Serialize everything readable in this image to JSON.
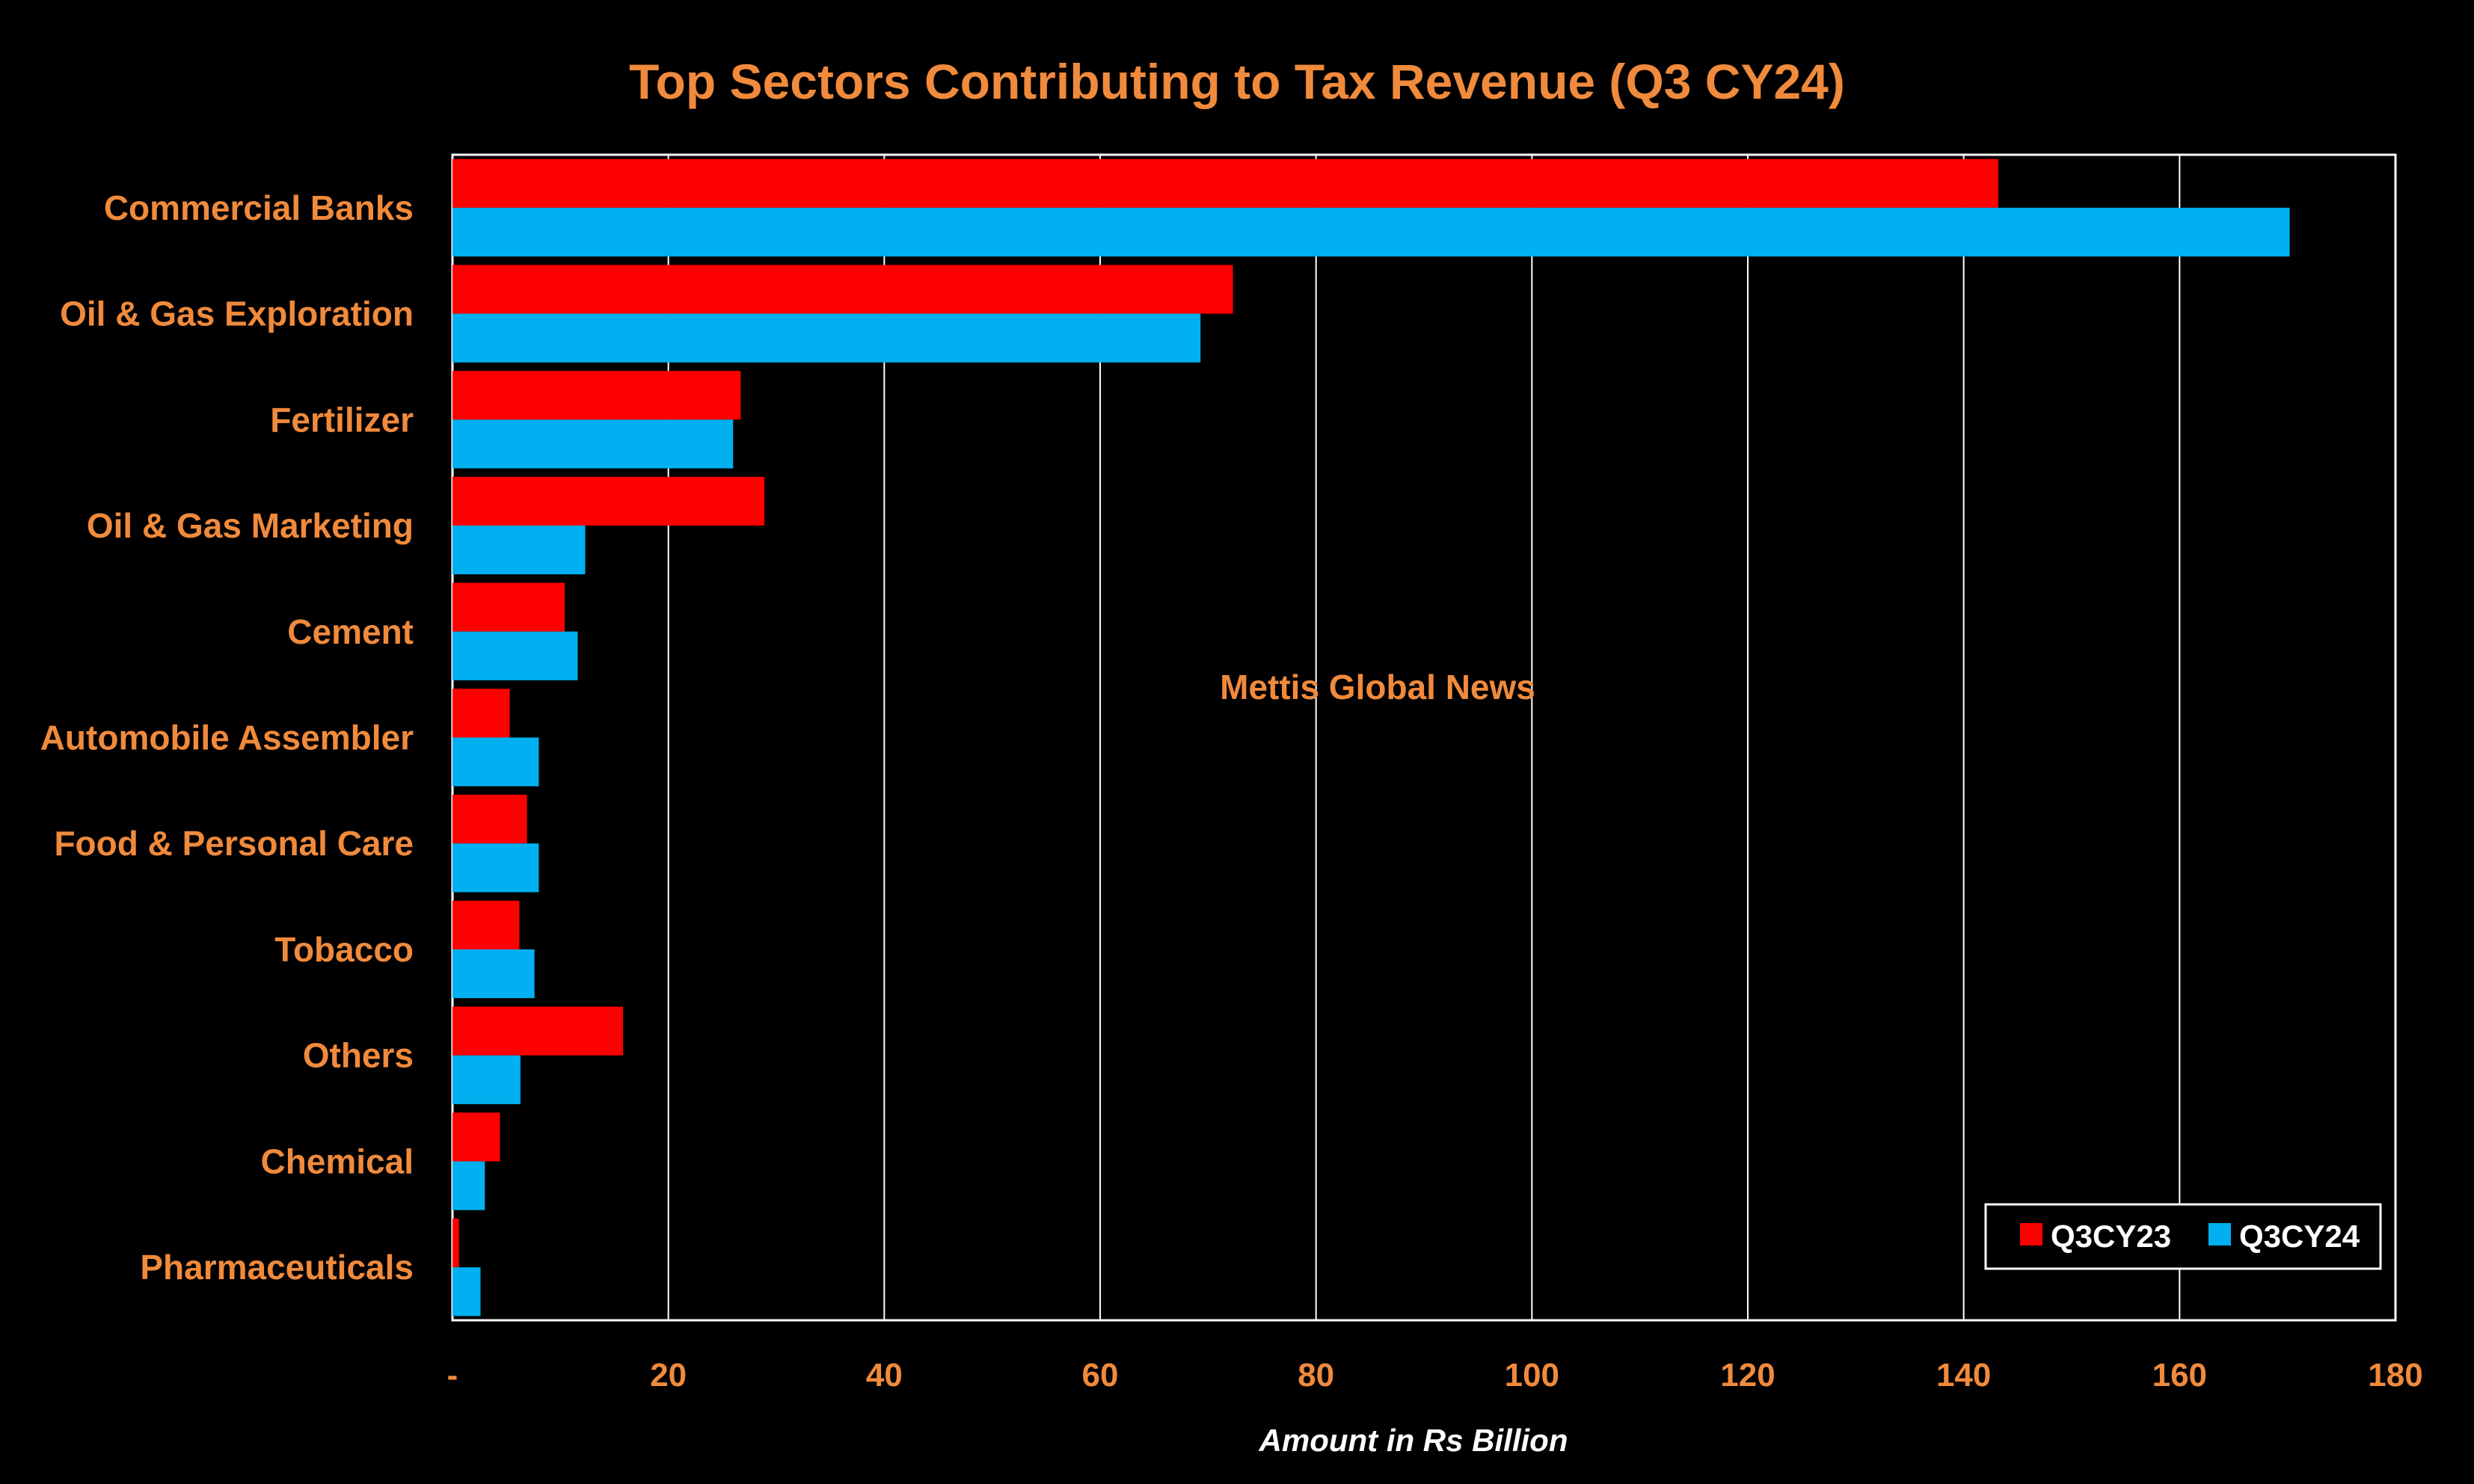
{
  "colors": {
    "background": "#000000",
    "text_orange": "#F08A3C",
    "axis_title": "#FFFFFF",
    "gridline": "#FFFFFF",
    "series_q3cy23": "#FF0000",
    "series_q3cy24": "#00B0F0"
  },
  "watermark": "Mettis Global News",
  "chart_data": {
    "type": "bar",
    "orientation": "horizontal",
    "title": "Top Sectors Contributing to Tax Revenue (Q3 CY24)",
    "xlabel": "Amount in Rs Billion",
    "ylabel": "",
    "xlim": [
      0,
      180
    ],
    "xticks": [
      0,
      20,
      40,
      60,
      80,
      100,
      120,
      140,
      160,
      180
    ],
    "xtick_labels": [
      "-",
      "20",
      "40",
      "60",
      "80",
      "100",
      "120",
      "140",
      "160",
      "180"
    ],
    "grid": "vertical",
    "legend_position": "bottom-right",
    "categories": [
      "Commercial Banks",
      "Oil & Gas Exploration",
      "Fertilizer",
      "Oil & Gas Marketing",
      "Cement",
      "Automobile Assembler",
      "Food & Personal Care",
      "Tobacco",
      "Others",
      "Chemical",
      "Pharmaceuticals"
    ],
    "series": [
      {
        "name": "Q3CY23",
        "color": "#FF0000",
        "values": [
          143.2,
          72.3,
          26.7,
          28.9,
          10.4,
          5.3,
          6.9,
          6.2,
          15.8,
          4.4,
          0.6
        ]
      },
      {
        "name": "Q3CY24",
        "color": "#00B0F0",
        "values": [
          170.2,
          69.3,
          26.0,
          12.3,
          11.6,
          8.0,
          8.0,
          7.6,
          6.3,
          3.0,
          2.6
        ]
      }
    ]
  }
}
